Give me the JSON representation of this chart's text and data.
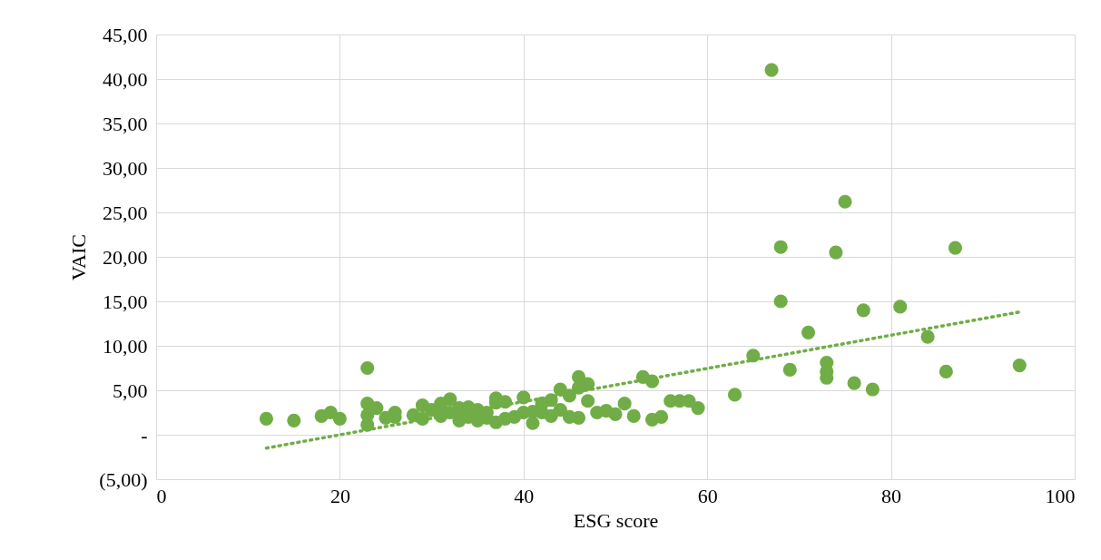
{
  "chart_data": {
    "type": "scatter",
    "xlabel": "ESG score",
    "ylabel": "VAIC",
    "grid": true,
    "xlim": [
      0,
      100
    ],
    "xticks": [
      0,
      20,
      40,
      60,
      80,
      100
    ],
    "ylim": [
      -5,
      45
    ],
    "yticks": [
      {
        "value": -5,
        "label": "(5,00)"
      },
      {
        "value": 0,
        "label": "-"
      },
      {
        "value": 5,
        "label": "5,00"
      },
      {
        "value": 10,
        "label": "10,00"
      },
      {
        "value": 15,
        "label": "15,00"
      },
      {
        "value": 20,
        "label": "20,00"
      },
      {
        "value": 25,
        "label": "25,00"
      },
      {
        "value": 30,
        "label": "30,00"
      },
      {
        "value": 35,
        "label": "35,00"
      },
      {
        "value": 40,
        "label": "40,00"
      },
      {
        "value": 45,
        "label": "45,00"
      }
    ],
    "series": [
      {
        "marker": "circle",
        "color": "#70ad47",
        "x": [
          67,
          68,
          68,
          74,
          75,
          77,
          81,
          84,
          87,
          71,
          65,
          69,
          73,
          73,
          73,
          76,
          78,
          86,
          94,
          63,
          59,
          58,
          57,
          56,
          55,
          54,
          54,
          53,
          52,
          51,
          50,
          49,
          48,
          47,
          47,
          46,
          46,
          46,
          45,
          45,
          44,
          44,
          43,
          43,
          42,
          42,
          41,
          41,
          40,
          40,
          39,
          38,
          38,
          37,
          37,
          37,
          36,
          36,
          35,
          35,
          34,
          34,
          33,
          33,
          32,
          32,
          31,
          31,
          30,
          29,
          29,
          28,
          26,
          26,
          25,
          24,
          23,
          23,
          23,
          23,
          20,
          19,
          18,
          15,
          12
        ],
        "values": [
          41.0,
          21.1,
          15.0,
          20.5,
          26.2,
          14.0,
          14.4,
          11.0,
          21.0,
          11.5,
          8.9,
          7.3,
          8.1,
          7.1,
          6.4,
          5.8,
          5.1,
          7.1,
          7.8,
          4.5,
          3.0,
          3.8,
          3.8,
          3.8,
          2.0,
          1.7,
          6.0,
          6.5,
          2.1,
          3.5,
          2.3,
          2.7,
          2.5,
          5.7,
          3.8,
          6.5,
          5.3,
          1.9,
          4.4,
          2.0,
          5.1,
          2.8,
          3.9,
          2.1,
          3.5,
          2.5,
          1.3,
          2.6,
          4.2,
          2.5,
          2.0,
          3.7,
          1.8,
          4.1,
          3.6,
          1.4,
          2.5,
          1.9,
          2.8,
          1.6,
          3.1,
          2.0,
          3.0,
          1.6,
          4.0,
          2.5,
          3.5,
          2.1,
          2.8,
          3.3,
          1.8,
          2.2,
          2.5,
          2.0,
          1.9,
          3.0,
          7.5,
          3.5,
          2.2,
          1.1,
          1.8,
          2.5,
          2.1,
          1.6,
          1.8
        ]
      },
      {
        "type": "line",
        "color": "#70ad47",
        "line_style": "dotted",
        "x": [
          12,
          94
        ],
        "values": [
          -1.5,
          13.8
        ]
      }
    ]
  }
}
